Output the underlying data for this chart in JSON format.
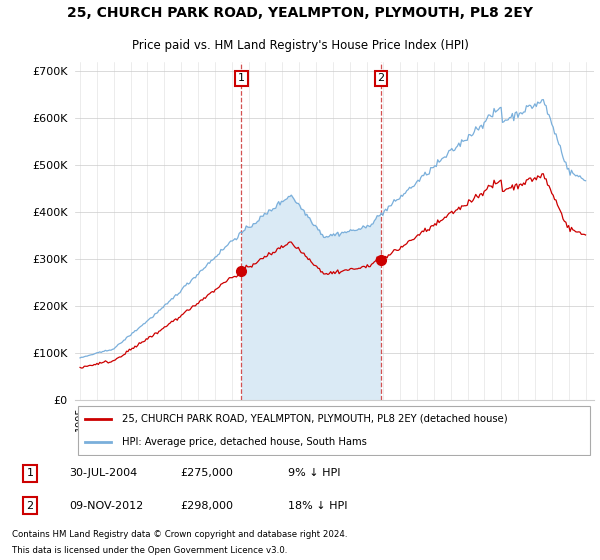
{
  "title": "25, CHURCH PARK ROAD, YEALMPTON, PLYMOUTH, PL8 2EY",
  "subtitle": "Price paid vs. HM Land Registry's House Price Index (HPI)",
  "sale1_label": "30-JUL-2004",
  "sale1_price": 275000,
  "sale1_hpi_diff": "9% ↓ HPI",
  "sale2_label": "09-NOV-2012",
  "sale2_price": 298000,
  "sale2_hpi_diff": "18% ↓ HPI",
  "legend_line1": "25, CHURCH PARK ROAD, YEALMPTON, PLYMOUTH, PL8 2EY (detached house)",
  "legend_line2": "HPI: Average price, detached house, South Hams",
  "footer1": "Contains HM Land Registry data © Crown copyright and database right 2024.",
  "footer2": "This data is licensed under the Open Government Licence v3.0.",
  "line_color_price": "#cc0000",
  "line_color_hpi": "#7aafdb",
  "fill_color_hpi": "#daeaf5",
  "marker_color": "#cc0000",
  "dashed_line_color": "#cc3333",
  "background_color": "#ffffff",
  "ylim": [
    0,
    720000
  ],
  "yticks": [
    0,
    100000,
    200000,
    300000,
    400000,
    500000,
    600000,
    700000
  ],
  "ytick_labels": [
    "£0",
    "£100K",
    "£200K",
    "£300K",
    "£400K",
    "£500K",
    "£600K",
    "£700K"
  ]
}
